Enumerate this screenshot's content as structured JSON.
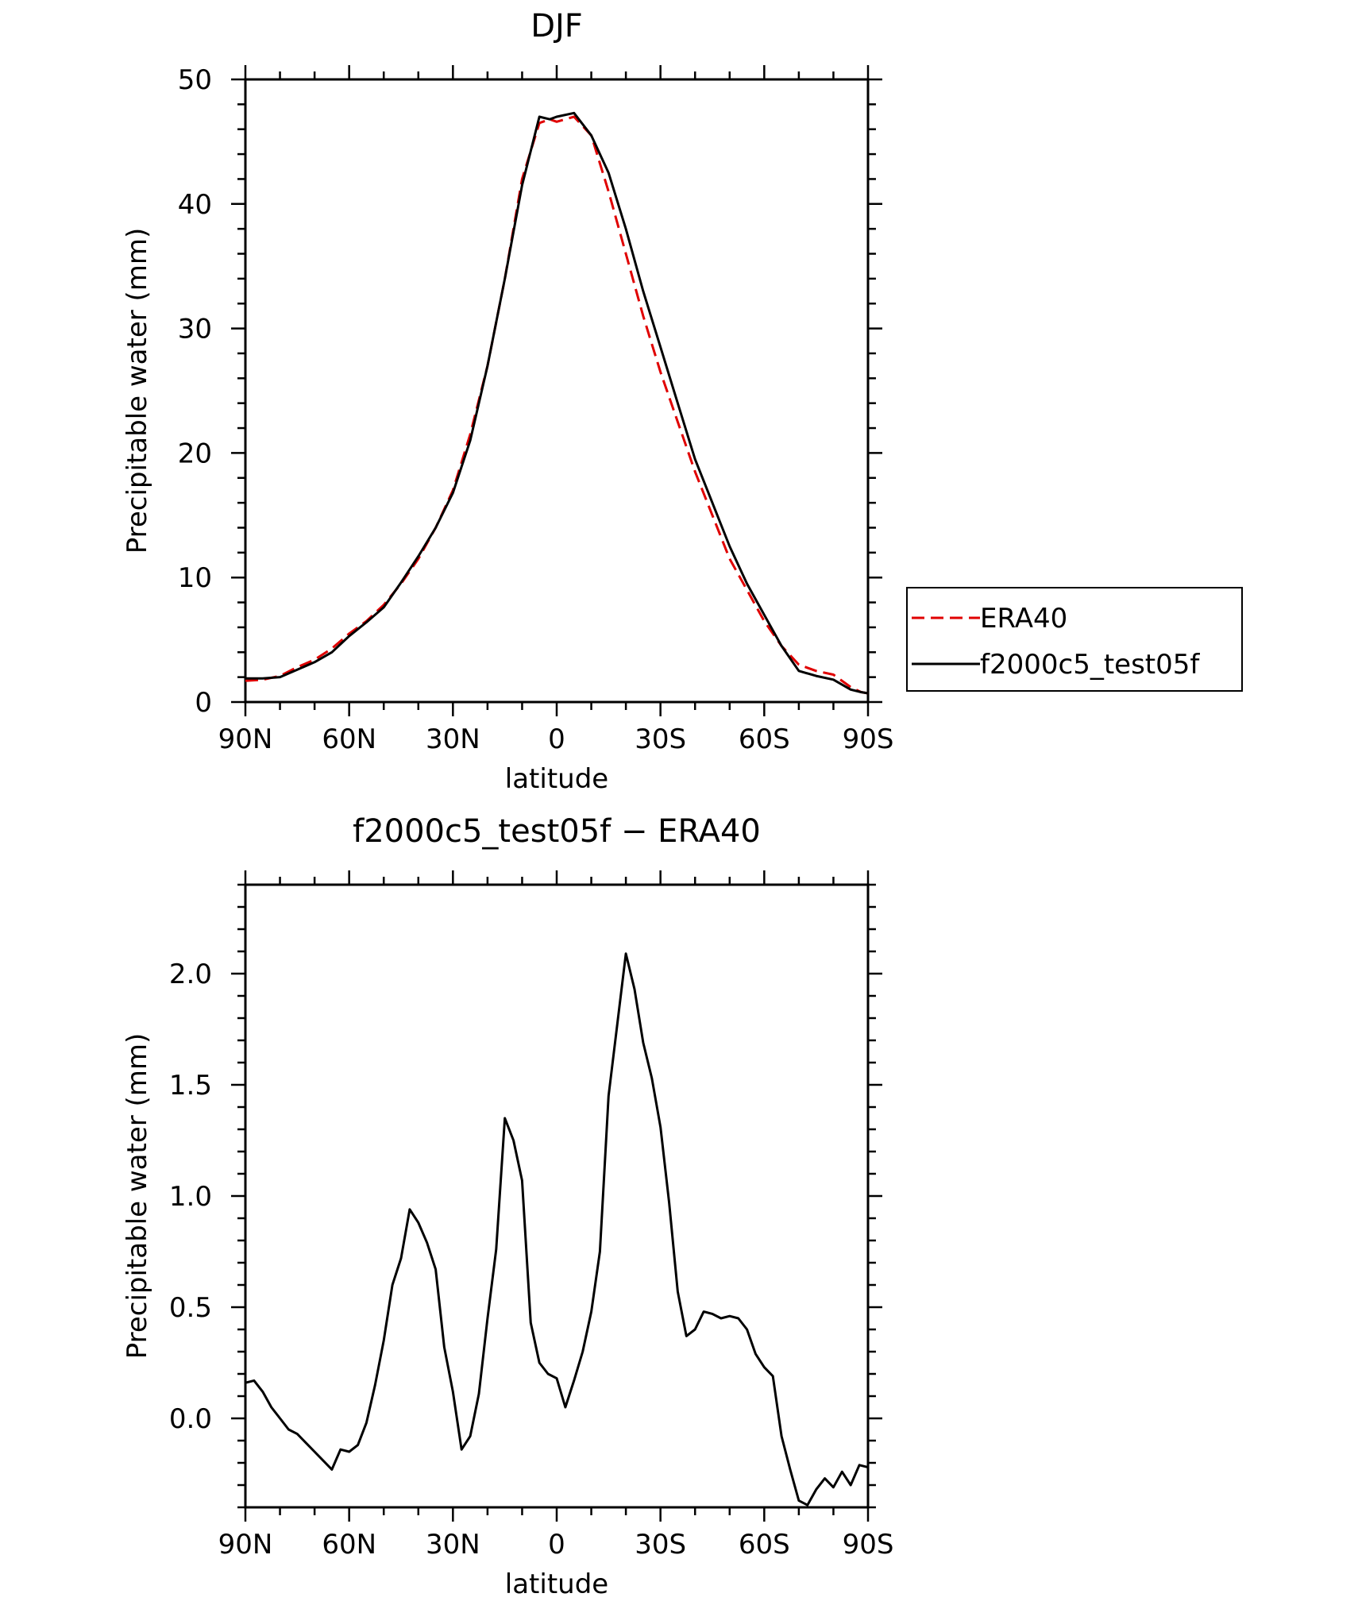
{
  "chart_data": [
    {
      "type": "line",
      "title": "DJF",
      "xlabel": "latitude",
      "ylabel": "Precipitable water (mm)",
      "xlim": [
        90,
        -90
      ],
      "ylim": [
        0,
        50
      ],
      "x_ticks": [
        90,
        60,
        30,
        0,
        -30,
        -60,
        -90
      ],
      "x_tick_labels": [
        "90N",
        "60N",
        "30N",
        "0",
        "30S",
        "60S",
        "90S"
      ],
      "y_ticks": [
        0,
        10,
        20,
        30,
        40,
        50
      ],
      "y_tick_labels": [
        "0",
        "10",
        "20",
        "30",
        "40",
        "50"
      ],
      "legend_position": "right",
      "series": [
        {
          "name": "ERA40",
          "style": "dashed",
          "color": "#e00000",
          "x": [
            90,
            85,
            80,
            75,
            70,
            65,
            60,
            55,
            50,
            45,
            40,
            35,
            30,
            25,
            20,
            15,
            10,
            5,
            2,
            0,
            -5,
            -10,
            -15,
            -20,
            -25,
            -30,
            -35,
            -40,
            -45,
            -50,
            -55,
            -60,
            -65,
            -70,
            -75,
            -80,
            -85,
            -88,
            -90
          ],
          "y": [
            1.7,
            1.8,
            2.1,
            2.8,
            3.4,
            4.3,
            5.5,
            6.5,
            7.8,
            9.5,
            11.5,
            14.0,
            17.0,
            21.5,
            27.0,
            34.0,
            42.0,
            46.5,
            46.8,
            46.6,
            47.0,
            45.5,
            41.0,
            36.0,
            31.0,
            26.5,
            22.5,
            18.5,
            15.0,
            11.5,
            9.0,
            6.5,
            4.5,
            3.0,
            2.5,
            2.2,
            1.2,
            0.8,
            0.7
          ]
        },
        {
          "name": "f2000c5_test05f",
          "style": "solid",
          "color": "#000000",
          "x": [
            90,
            85,
            80,
            75,
            70,
            65,
            60,
            55,
            50,
            45,
            40,
            35,
            30,
            25,
            20,
            15,
            10,
            5,
            2,
            0,
            -5,
            -10,
            -15,
            -20,
            -25,
            -30,
            -35,
            -40,
            -45,
            -50,
            -55,
            -60,
            -65,
            -70,
            -75,
            -80,
            -85,
            -88,
            -90
          ],
          "y": [
            1.9,
            1.9,
            2.0,
            2.6,
            3.2,
            4.0,
            5.3,
            6.4,
            7.6,
            9.6,
            11.7,
            14.0,
            16.8,
            21.0,
            27.0,
            34.0,
            41.5,
            47.0,
            46.8,
            47.0,
            47.3,
            45.5,
            42.5,
            38.0,
            33.0,
            28.5,
            24.0,
            19.5,
            16.0,
            12.5,
            9.5,
            7.0,
            4.5,
            2.5,
            2.1,
            1.8,
            1.0,
            0.8,
            0.7
          ]
        }
      ]
    },
    {
      "type": "line",
      "title": "f2000c5_test05f − ERA40",
      "xlabel": "latitude",
      "ylabel": "Precipitable water (mm)",
      "xlim": [
        90,
        -90
      ],
      "ylim": [
        -0.4,
        2.4
      ],
      "x_ticks": [
        90,
        60,
        30,
        0,
        -30,
        -60,
        -90
      ],
      "x_tick_labels": [
        "90N",
        "60N",
        "30N",
        "0",
        "30S",
        "60S",
        "90S"
      ],
      "y_ticks": [
        0.0,
        0.5,
        1.0,
        1.5,
        2.0
      ],
      "y_tick_labels": [
        "0.0",
        "0.5",
        "1.0",
        "1.5",
        "2.0"
      ],
      "series": [
        {
          "color": "#000000",
          "x": [
            90,
            87.5,
            85,
            82.5,
            80,
            77.5,
            75,
            72.5,
            70,
            67.5,
            65,
            62.5,
            60,
            57.5,
            55,
            52.5,
            50,
            47.5,
            45,
            42.5,
            40,
            37.5,
            35,
            32.5,
            30,
            27.5,
            25,
            22.5,
            20,
            17.5,
            15,
            12.5,
            10,
            7.5,
            5,
            2.5,
            0,
            -2.5,
            -5,
            -7.5,
            -10,
            -12.5,
            -15,
            -17.5,
            -20,
            -22.5,
            -25,
            -27.5,
            -30,
            -32.5,
            -35,
            -37.5,
            -40,
            -42.5,
            -45,
            -47.5,
            -50,
            -52.5,
            -55,
            -57.5,
            -60,
            -62.5,
            -65,
            -67.5,
            -70,
            -72.5,
            -75,
            -77.5,
            -80,
            -82.5,
            -85,
            -87.5,
            -90
          ],
          "y": [
            0.16,
            0.17,
            0.12,
            0.05,
            0.0,
            -0.05,
            -0.07,
            -0.11,
            -0.15,
            -0.19,
            -0.23,
            -0.14,
            -0.15,
            -0.12,
            -0.02,
            0.15,
            0.35,
            0.6,
            0.72,
            0.94,
            0.88,
            0.79,
            0.67,
            0.32,
            0.12,
            -0.14,
            -0.08,
            0.11,
            0.45,
            0.76,
            1.35,
            1.25,
            1.07,
            0.43,
            0.25,
            0.2,
            0.18,
            0.05,
            0.17,
            0.3,
            0.48,
            0.75,
            1.45,
            1.77,
            2.09,
            1.93,
            1.69,
            1.53,
            1.31,
            0.97,
            0.57,
            0.37,
            0.4,
            0.48,
            0.47,
            0.45,
            0.46,
            0.45,
            0.4,
            0.29,
            0.23,
            0.19,
            -0.08,
            -0.23,
            -0.37,
            -0.39,
            -0.32,
            -0.27,
            -0.31,
            -0.24,
            -0.3,
            -0.21,
            -0.22
          ]
        }
      ]
    }
  ]
}
